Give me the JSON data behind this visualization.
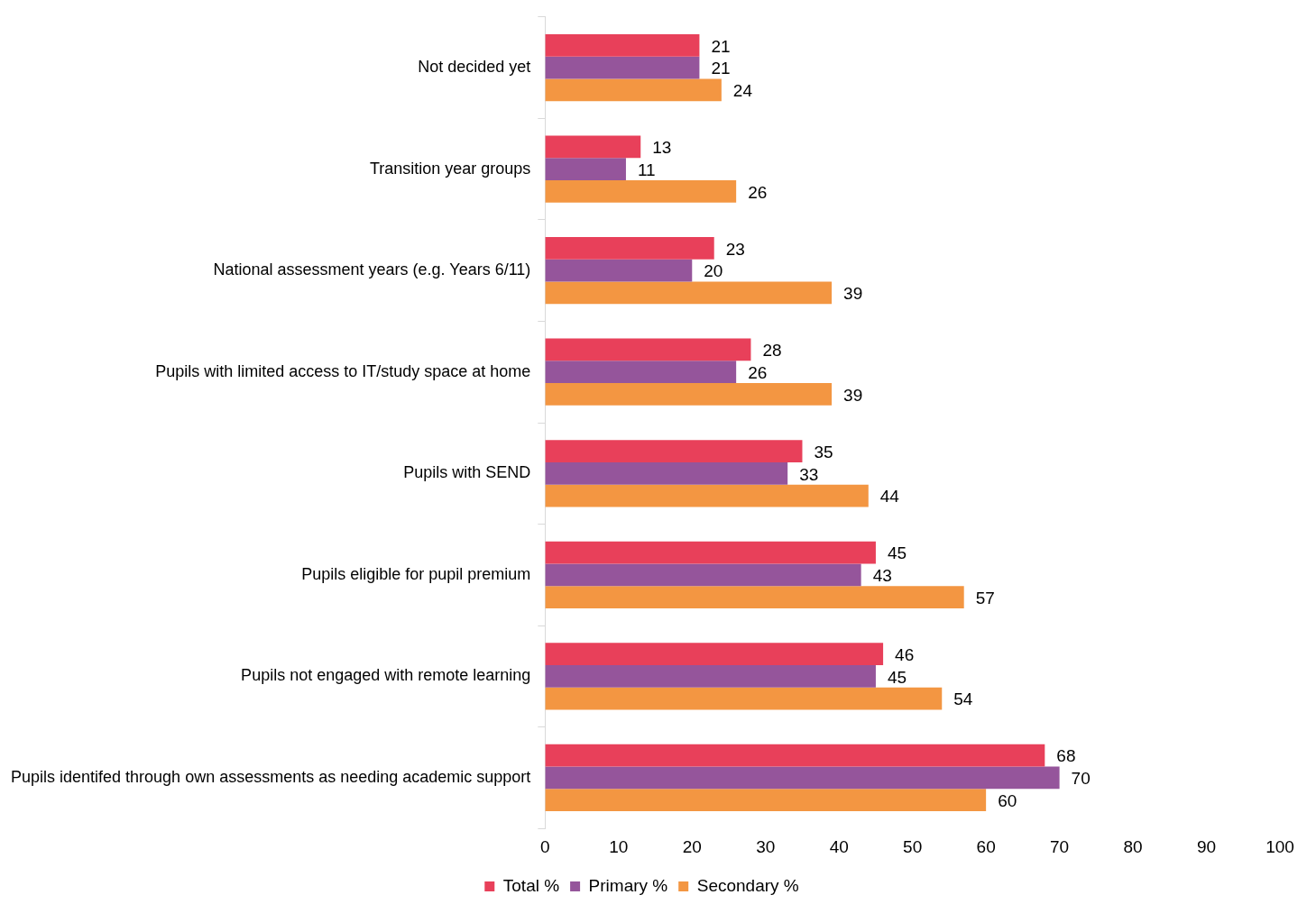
{
  "chart_data": {
    "type": "bar",
    "orientation": "horizontal",
    "categories": [
      "Not decided yet",
      "Transition year groups",
      "National assessment years (e.g. Years 6/11)",
      "Pupils with limited access to IT/study space at home",
      "Pupils with SEND",
      "Pupils eligible for pupil premium",
      "Pupils not engaged with remote learning",
      "Pupils identifed through own assessments as needing academic support"
    ],
    "series": [
      {
        "name": "Total %",
        "color": "#e8405a",
        "values": [
          21,
          13,
          23,
          28,
          35,
          45,
          46,
          68
        ]
      },
      {
        "name": "Primary %",
        "color": "#95559b",
        "values": [
          21,
          11,
          20,
          26,
          33,
          43,
          45,
          70
        ]
      },
      {
        "name": "Secondary %",
        "color": "#f39642",
        "values": [
          24,
          26,
          39,
          39,
          44,
          57,
          54,
          60
        ]
      }
    ],
    "xlim": [
      0,
      100
    ],
    "xticks": [
      0,
      10,
      20,
      30,
      40,
      50,
      60,
      70,
      80,
      90,
      100
    ],
    "data_labels": true,
    "grid": false,
    "legend": "bottom"
  }
}
